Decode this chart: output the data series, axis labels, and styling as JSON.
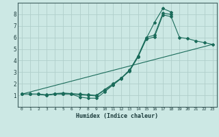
{
  "xlabel": "Humidex (Indice chaleur)",
  "xlim": [
    -0.5,
    23.5
  ],
  "ylim": [
    0,
    9
  ],
  "xticks": [
    0,
    1,
    2,
    3,
    4,
    5,
    6,
    7,
    8,
    9,
    10,
    11,
    12,
    13,
    14,
    15,
    16,
    17,
    18,
    19,
    20,
    21,
    22,
    23
  ],
  "yticks": [
    1,
    2,
    3,
    4,
    5,
    6,
    7,
    8
  ],
  "bg_color": "#cce8e4",
  "grid_color": "#b0ceca",
  "line_color": "#1a6b5a",
  "series": [
    {
      "x": [
        0,
        1,
        2,
        3,
        4,
        5,
        6,
        7,
        8,
        9,
        10,
        11,
        12,
        13,
        14,
        15,
        16,
        17,
        18
      ],
      "y": [
        1.1,
        1.1,
        1.1,
        1.0,
        1.1,
        1.1,
        1.1,
        0.85,
        0.75,
        0.75,
        1.3,
        1.9,
        2.5,
        3.1,
        4.3,
        5.9,
        7.3,
        8.5,
        8.2
      ],
      "markers": true
    },
    {
      "x": [
        0,
        1,
        2,
        3,
        4,
        5,
        6,
        7,
        8,
        9,
        10,
        11,
        12,
        13,
        14,
        15,
        16,
        17,
        18
      ],
      "y": [
        1.1,
        1.1,
        1.1,
        1.0,
        1.15,
        1.2,
        1.15,
        1.1,
        1.05,
        1.0,
        1.5,
        2.0,
        2.5,
        3.2,
        4.4,
        6.0,
        6.2,
        8.1,
        8.0
      ],
      "markers": true
    },
    {
      "x": [
        0,
        1,
        2,
        3,
        4,
        5,
        6,
        7,
        8,
        9,
        10,
        11,
        12,
        13,
        14,
        15,
        16,
        17,
        18,
        19,
        20,
        21,
        22,
        23
      ],
      "y": [
        1.1,
        1.1,
        1.1,
        1.05,
        1.1,
        1.15,
        1.1,
        1.05,
        1.0,
        0.95,
        1.45,
        1.9,
        2.45,
        3.15,
        4.3,
        5.85,
        6.05,
        7.95,
        7.8,
        6.0,
        5.9,
        5.7,
        5.55,
        5.4
      ],
      "markers": true
    },
    {
      "x": [
        0,
        23
      ],
      "y": [
        1.1,
        5.4
      ],
      "markers": false
    }
  ]
}
